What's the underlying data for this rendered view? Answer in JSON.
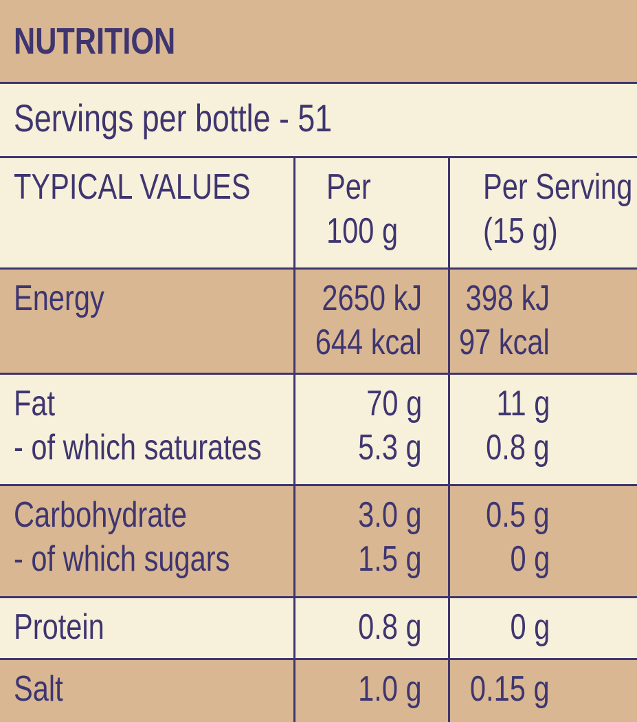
{
  "header": {
    "title": "NUTRITION",
    "servings": "Servings per bottle - 51"
  },
  "table": {
    "columns": [
      [
        "TYPICAL VALUES"
      ],
      [
        "Per",
        "100 g"
      ],
      [
        "Per Serving",
        "(15 g)"
      ]
    ],
    "rows": [
      [
        [
          "Energy"
        ],
        [
          "2650 kJ",
          "644 kcal"
        ],
        [
          "398 kJ",
          "97 kcal"
        ]
      ],
      [
        [
          "Fat",
          " - of which saturates"
        ],
        [
          "70 g",
          "5.3 g"
        ],
        [
          "11 g",
          "0.8 g"
        ]
      ],
      [
        [
          "Carbohydrate",
          " - of which sugars"
        ],
        [
          "3.0 g",
          "1.5 g"
        ],
        [
          "0.5 g",
          "0 g"
        ]
      ],
      [
        [
          "Protein"
        ],
        [
          "0.8 g"
        ],
        [
          "0 g"
        ]
      ],
      [
        [
          "Salt"
        ],
        [
          "1.0 g"
        ],
        [
          "0.15 g"
        ]
      ]
    ]
  }
}
